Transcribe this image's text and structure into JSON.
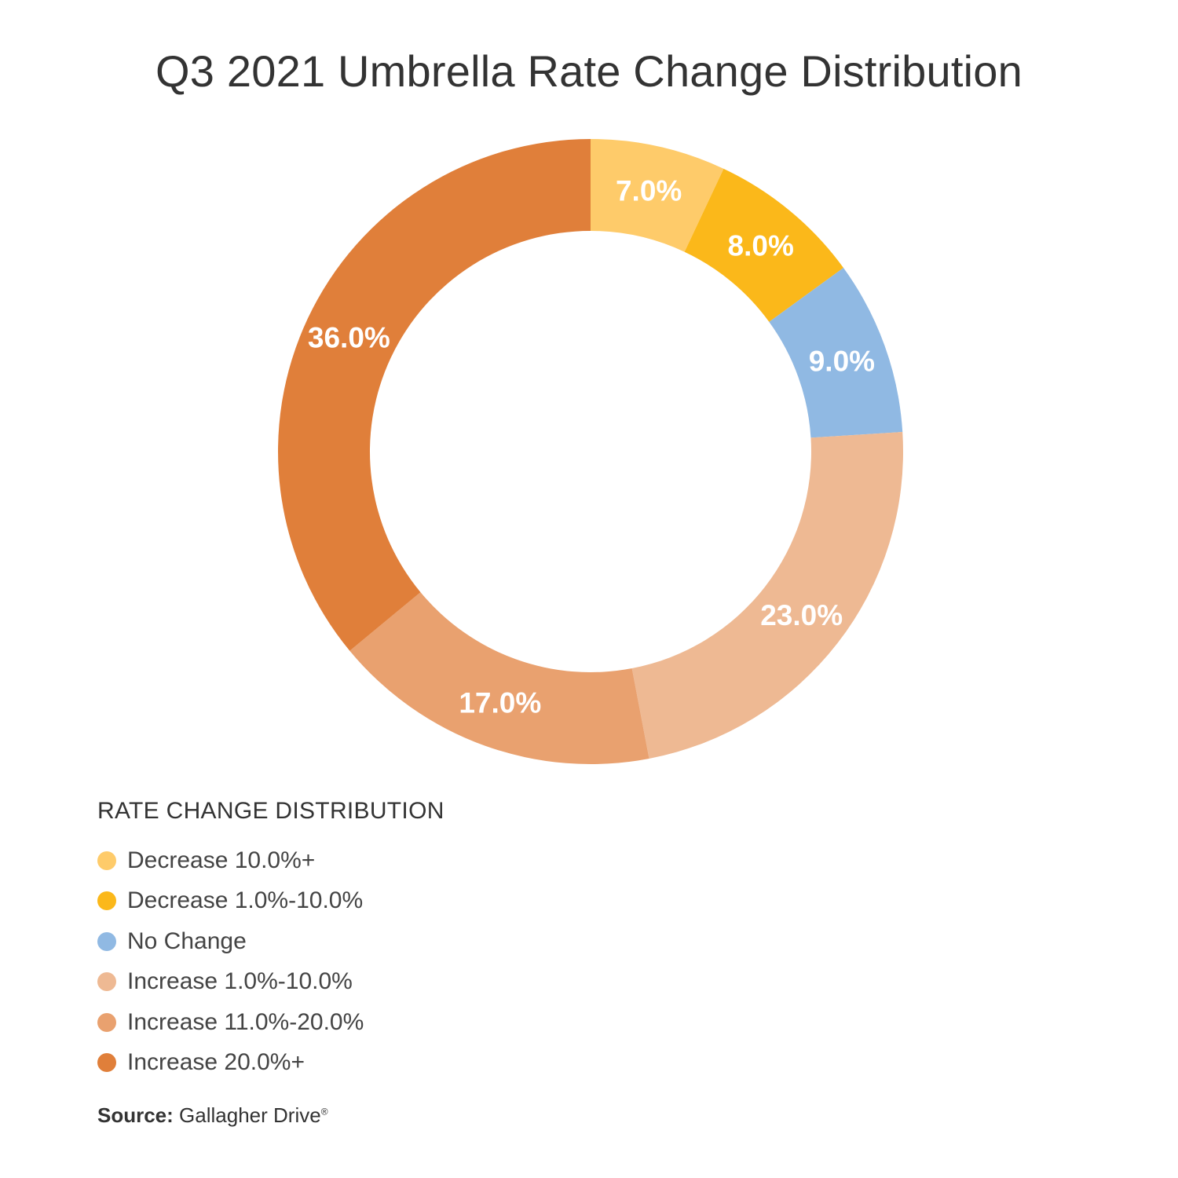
{
  "chart_data": {
    "type": "pie",
    "variant": "donut",
    "title": "Q3 2021 Umbrella Rate Change Distribution",
    "legend_title": "RATE CHANGE DISTRIBUTION",
    "slices": [
      {
        "label": "Decrease 10.0%+",
        "value": 7.0,
        "display": "7.0%",
        "color": "#FECB6A"
      },
      {
        "label": "Decrease 1.0%-10.0%",
        "value": 8.0,
        "display": "8.0%",
        "color": "#FBB81A"
      },
      {
        "label": "No Change",
        "value": 9.0,
        "display": "9.0%",
        "color": "#90B9E3"
      },
      {
        "label": "Increase 1.0%-10.0%",
        "value": 23.0,
        "display": "23.0%",
        "color": "#EEB993"
      },
      {
        "label": "Increase 11.0%-20.0%",
        "value": 17.0,
        "display": "17.0%",
        "color": "#E9A16F"
      },
      {
        "label": "Increase 20.0%+",
        "value": 36.0,
        "display": "36.0%",
        "color": "#E07F3A"
      }
    ]
  },
  "source": {
    "label": "Source:",
    "text": "Gallagher Drive",
    "mark": "®"
  }
}
